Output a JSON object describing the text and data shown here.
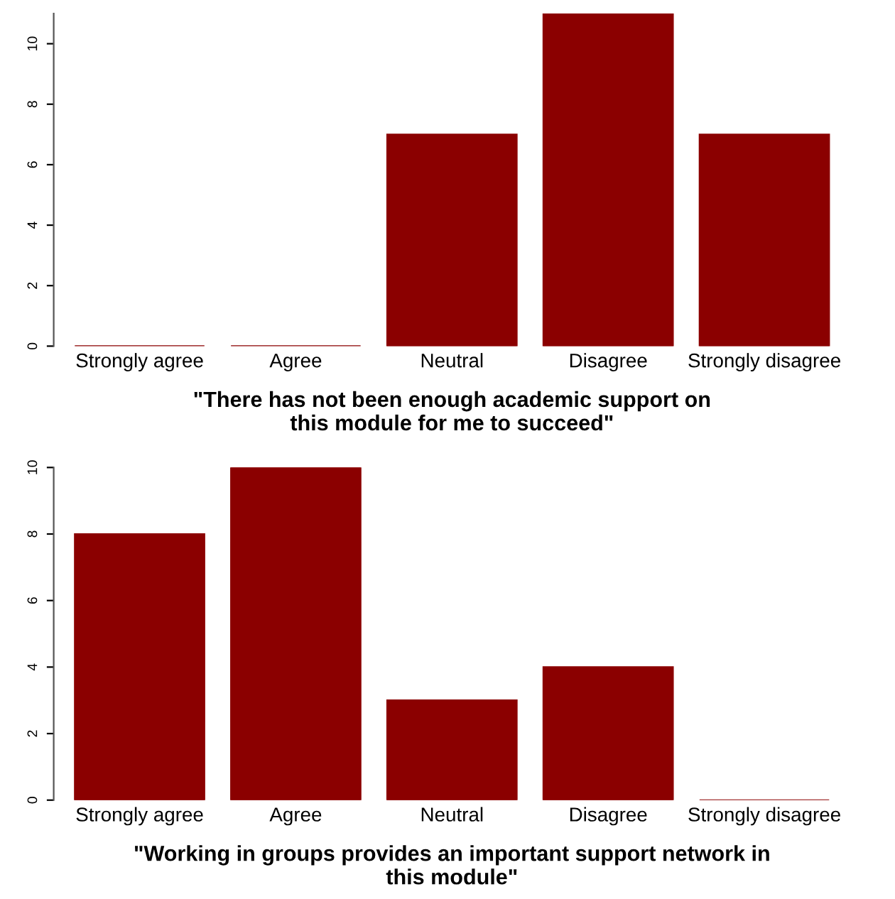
{
  "chart_data": [
    {
      "type": "bar",
      "xlabel": "\"There has not been enough academic support on\nthis module for me to succeed\"",
      "categories": [
        "Strongly agree",
        "Agree",
        "Neutral",
        "Disagree",
        "Strongly disagree"
      ],
      "values": [
        0,
        0,
        7,
        11,
        7
      ],
      "color": "#8b0000",
      "ylim": [
        0,
        11
      ],
      "yticks": [
        0,
        2,
        4,
        6,
        8,
        10
      ],
      "grid": false,
      "legend": false
    },
    {
      "type": "bar",
      "xlabel": "\"Working in groups provides an important support network in\nthis module\"",
      "categories": [
        "Strongly agree",
        "Agree",
        "Neutral",
        "Disagree",
        "Strongly disagree"
      ],
      "values": [
        8,
        10,
        3,
        4,
        0
      ],
      "color": "#8b0000",
      "ylim": [
        0,
        10
      ],
      "yticks": [
        0,
        2,
        4,
        6,
        8,
        10
      ],
      "grid": false,
      "legend": false
    }
  ]
}
